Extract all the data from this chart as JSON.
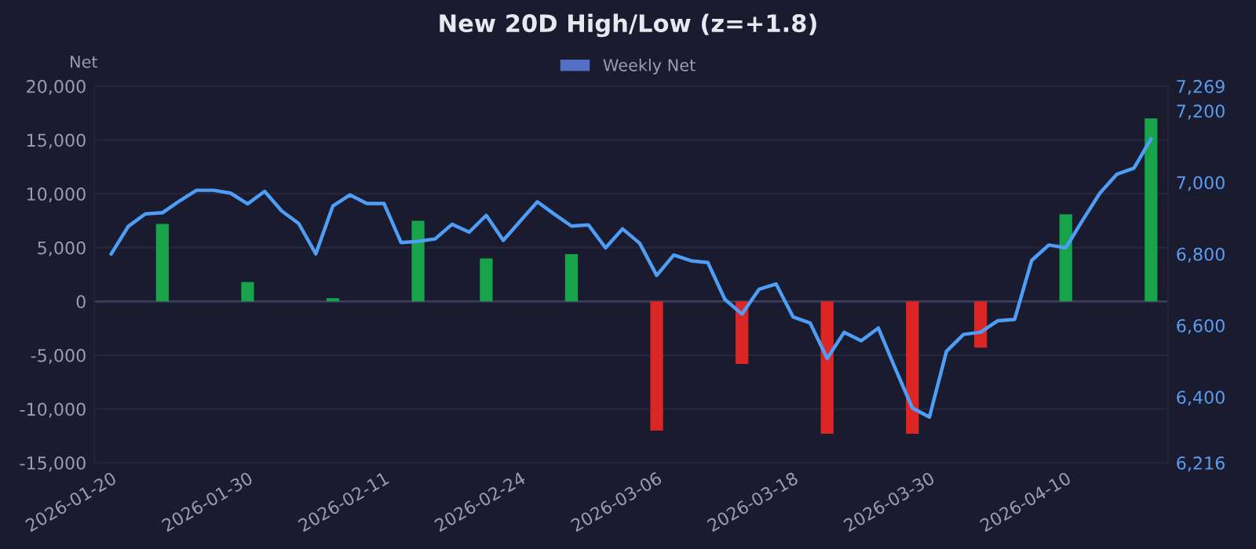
{
  "chart_data": {
    "type": "bar",
    "title": "New 20D High/Low (z=+1.8)",
    "ylabel": "Net",
    "categories": [
      "2026-01-20",
      null,
      null,
      null,
      null,
      null,
      null,
      null,
      "2026-01-30",
      null,
      null,
      null,
      null,
      null,
      null,
      null,
      "2026-02-11",
      null,
      null,
      null,
      null,
      null,
      null,
      null,
      "2026-02-24",
      null,
      null,
      null,
      null,
      null,
      null,
      null,
      "2026-03-06",
      null,
      null,
      null,
      null,
      null,
      null,
      null,
      "2026-03-18",
      null,
      null,
      null,
      null,
      null,
      null,
      null,
      "2026-03-30",
      null,
      null,
      null,
      null,
      null,
      null,
      null,
      "2026-04-10",
      null,
      null,
      null,
      null,
      null
    ],
    "series": [
      {
        "name": "Weekly Net",
        "color": "#5470c6",
        "colors": [
          null,
          null,
          null,
          "#16a34a",
          null,
          null,
          null,
          null,
          "#16a34a",
          null,
          null,
          null,
          null,
          "#16a34a",
          null,
          null,
          null,
          null,
          "#16a34a",
          null,
          null,
          null,
          "#16a34a",
          null,
          null,
          null,
          null,
          "#16a34a",
          null,
          null,
          null,
          null,
          "#dc2626",
          null,
          null,
          null,
          null,
          "#dc2626",
          null,
          null,
          null,
          null,
          "#dc2626",
          null,
          null,
          null,
          null,
          "#dc2626",
          null,
          null,
          null,
          "#dc2626",
          null,
          null,
          null,
          null,
          "#16a34a",
          null,
          null,
          null,
          null,
          "#16a34a"
        ],
        "values": [
          null,
          null,
          null,
          7200,
          null,
          null,
          null,
          null,
          1800,
          null,
          null,
          null,
          null,
          300,
          null,
          null,
          null,
          null,
          7500,
          null,
          null,
          null,
          4000,
          null,
          null,
          null,
          null,
          4400,
          null,
          null,
          null,
          null,
          -12000,
          null,
          null,
          null,
          null,
          -5800,
          null,
          null,
          null,
          null,
          -12300,
          null,
          null,
          null,
          null,
          -12300,
          null,
          null,
          null,
          -4300,
          null,
          null,
          null,
          null,
          8100,
          null,
          null,
          null,
          null,
          17000
        ]
      },
      {
        "type": "line",
        "axis": "y2",
        "color": "#4e9ef5",
        "values": [
          6800,
          6877,
          6912,
          6915,
          6948,
          6978,
          6978,
          6970,
          6940,
          6975,
          6920,
          6885,
          6800,
          6934,
          6965,
          6941,
          6941,
          6832,
          6835,
          6842,
          6883,
          6861,
          6908,
          6838,
          6892,
          6946,
          6911,
          6878,
          6881,
          6817,
          6870,
          6830,
          6740,
          6797,
          6781,
          6776,
          6673,
          6632,
          6701,
          6716,
          6624,
          6607,
          6508,
          6581,
          6557,
          6593,
          6479,
          6369,
          6344,
          6528,
          6575,
          6581,
          6613,
          6617,
          6782,
          6825,
          6817,
          6895,
          6970,
          7023,
          7040,
          7122
        ]
      }
    ],
    "ylim": [
      -15000,
      20000
    ],
    "yticks": [
      {
        "value": -15000,
        "label": "-15,000"
      },
      {
        "value": -10000,
        "label": "-10,000"
      },
      {
        "value": -5000,
        "label": "-5,000"
      },
      0,
      {
        "value": 5000,
        "label": "5,000"
      },
      {
        "value": 10000,
        "label": "10,000"
      },
      {
        "value": 15000,
        "label": "15,000"
      },
      {
        "value": 20000,
        "label": "20,000"
      }
    ],
    "y2lim": [
      6216,
      7269
    ],
    "y2ticks": [
      {
        "value": 6216,
        "label": "6,216"
      },
      {
        "value": 6400,
        "label": "6,400"
      },
      {
        "value": 6600,
        "label": "6,600"
      },
      {
        "value": 6800,
        "label": "6,800"
      },
      {
        "value": 7000,
        "label": "7,000"
      },
      {
        "value": 7200,
        "label": "7,200"
      },
      {
        "value": 7269,
        "label": "7,269"
      }
    ],
    "grid": "y",
    "legend": "top",
    "marker": "none",
    "line_style": "solid"
  }
}
